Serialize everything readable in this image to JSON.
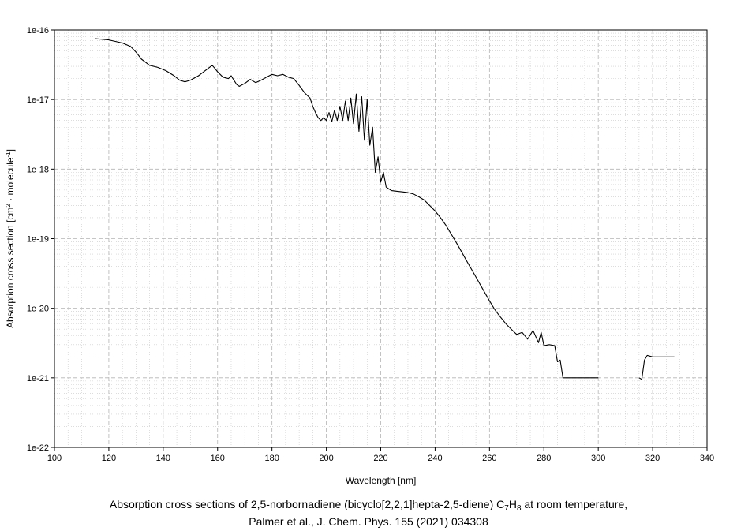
{
  "chart_data": {
    "type": "line",
    "title": "",
    "xlabel": "Wavelength [nm]",
    "ylabel": {
      "base": "Absorption cross section [cm",
      "sup1": "2",
      "mid": " · molecule",
      "sup2": "-1",
      "end": "]"
    },
    "xlim": [
      100,
      340
    ],
    "ylim": [
      1e-22,
      1e-16
    ],
    "yscale": "log",
    "grid": true,
    "xticks": [
      100,
      120,
      140,
      160,
      180,
      200,
      220,
      240,
      260,
      280,
      300,
      320,
      340
    ],
    "yticks": [
      {
        "value": 1e-16,
        "label": "1e-16"
      },
      {
        "value": 1e-17,
        "label": "1e-17"
      },
      {
        "value": 1e-18,
        "label": "1e-18"
      },
      {
        "value": 1e-19,
        "label": "1e-19"
      },
      {
        "value": 1e-20,
        "label": "1e-20"
      },
      {
        "value": 1e-21,
        "label": "1e-21"
      },
      {
        "value": 1e-22,
        "label": "1e-22"
      }
    ],
    "series": [
      {
        "color": "#000000",
        "segments": [
          [
            [
              115,
              7.5e-17
            ],
            [
              120,
              7.2e-17
            ],
            [
              125,
              6.5e-17
            ],
            [
              128,
              5.8e-17
            ],
            [
              130,
              4.8e-17
            ],
            [
              132,
              3.8e-17
            ],
            [
              135,
              3.1e-17
            ],
            [
              138,
              2.9e-17
            ],
            [
              141,
              2.6e-17
            ],
            [
              144,
              2.2e-17
            ],
            [
              146,
              1.9e-17
            ],
            [
              148,
              1.8e-17
            ],
            [
              150,
              1.9e-17
            ],
            [
              153,
              2.2e-17
            ],
            [
              156,
              2.7e-17
            ],
            [
              158,
              3.1e-17
            ],
            [
              159,
              2.8e-17
            ],
            [
              160,
              2.5e-17
            ],
            [
              162,
              2.1e-17
            ],
            [
              164,
              2e-17
            ],
            [
              165,
              2.2e-17
            ],
            [
              166,
              1.9e-17
            ],
            [
              167,
              1.65e-17
            ],
            [
              168,
              1.55e-17
            ],
            [
              170,
              1.7e-17
            ],
            [
              172,
              1.95e-17
            ],
            [
              174,
              1.75e-17
            ],
            [
              176,
              1.9e-17
            ],
            [
              178,
              2.1e-17
            ],
            [
              180,
              2.3e-17
            ],
            [
              182,
              2.2e-17
            ],
            [
              184,
              2.3e-17
            ],
            [
              186,
              2.1e-17
            ],
            [
              188,
              2e-17
            ],
            [
              190,
              1.6e-17
            ],
            [
              192,
              1.25e-17
            ],
            [
              194,
              1.05e-17
            ],
            [
              195,
              8e-18
            ],
            [
              196,
              6.5e-18
            ],
            [
              197,
              5.5e-18
            ],
            [
              198,
              5e-18
            ],
            [
              199,
              5.5e-18
            ],
            [
              200,
              5e-18
            ],
            [
              201,
              6.5e-18
            ],
            [
              202,
              4.8e-18
            ],
            [
              203,
              7e-18
            ],
            [
              204,
              5e-18
            ],
            [
              205,
              8e-18
            ],
            [
              206,
              5e-18
            ],
            [
              207,
              9.5e-18
            ],
            [
              208,
              5e-18
            ],
            [
              209,
              1.05e-17
            ],
            [
              210,
              4.5e-18
            ],
            [
              211,
              1.2e-17
            ],
            [
              212,
              3.5e-18
            ],
            [
              213,
              1.1e-17
            ],
            [
              214,
              2.6e-18
            ],
            [
              215,
              1e-17
            ],
            [
              216,
              2.2e-18
            ],
            [
              217,
              4e-18
            ],
            [
              218,
              9e-19
            ],
            [
              219,
              1.5e-18
            ],
            [
              220,
              6.5e-19
            ],
            [
              221,
              9e-19
            ],
            [
              222,
              5.5e-19
            ],
            [
              224,
              4.9e-19
            ],
            [
              226,
              4.8e-19
            ],
            [
              228,
              4.7e-19
            ],
            [
              230,
              4.6e-19
            ],
            [
              232,
              4.4e-19
            ],
            [
              234,
              4e-19
            ],
            [
              236,
              3.6e-19
            ],
            [
              238,
              3e-19
            ],
            [
              240,
              2.5e-19
            ],
            [
              242,
              2e-19
            ],
            [
              244,
              1.55e-19
            ],
            [
              246,
              1.15e-19
            ],
            [
              248,
              8.5e-20
            ],
            [
              250,
              6.2e-20
            ],
            [
              252,
              4.5e-20
            ],
            [
              254,
              3.3e-20
            ],
            [
              256,
              2.4e-20
            ],
            [
              258,
              1.75e-20
            ],
            [
              260,
              1.28e-20
            ],
            [
              262,
              9.5e-21
            ],
            [
              264,
              7.5e-21
            ],
            [
              266,
              6e-21
            ],
            [
              268,
              5e-21
            ],
            [
              270,
              4.2e-21
            ],
            [
              272,
              4.5e-21
            ],
            [
              274,
              3.6e-21
            ],
            [
              276,
              4.8e-21
            ],
            [
              278,
              3.2e-21
            ],
            [
              279,
              4.5e-21
            ],
            [
              280,
              2.9e-21
            ],
            [
              282,
              3e-21
            ],
            [
              284,
              2.9e-21
            ],
            [
              285,
              1.7e-21
            ],
            [
              286,
              1.8e-21
            ],
            [
              287,
              1e-21
            ],
            [
              290,
              1e-21
            ],
            [
              300,
              1e-21
            ]
          ],
          [
            [
              315,
              1e-21
            ],
            [
              316,
              9.5e-22
            ],
            [
              317,
              1.8e-21
            ],
            [
              318,
              2.1e-21
            ],
            [
              320,
              2e-21
            ],
            [
              325,
              2e-21
            ],
            [
              328,
              2e-21
            ]
          ]
        ]
      }
    ]
  },
  "caption": {
    "line1_a": "Absorption cross sections of 2,5-norbornadiene (bicyclo[2,2,1]hepta-2,5-diene) C",
    "sub1": "7",
    "mid": "H",
    "sub2": "8",
    "line1_b": " at room temperature,",
    "line2": "Palmer et al., J. Chem. Phys. 155 (2021) 034308"
  }
}
